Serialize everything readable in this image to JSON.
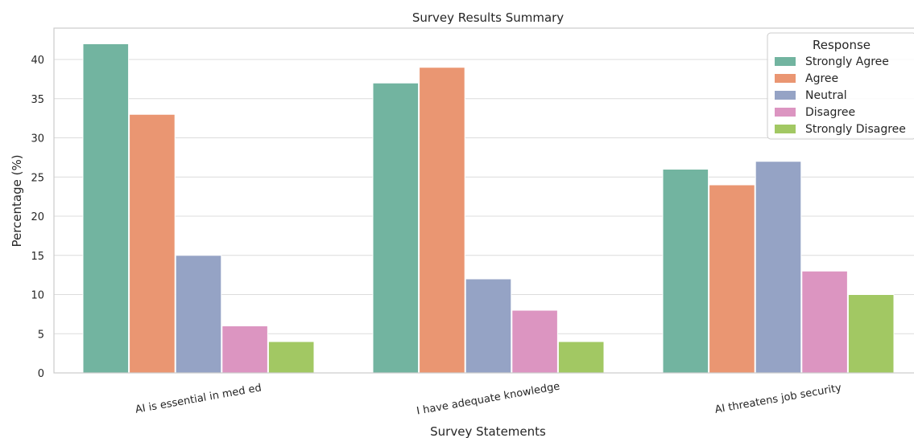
{
  "chart_data": {
    "type": "bar",
    "title": "Survey Results Summary",
    "xlabel": "Survey Statements",
    "ylabel": "Percentage (%)",
    "categories": [
      "AI is essential in med ed",
      "I have adequate knowledge",
      "AI threatens job security"
    ],
    "series": [
      {
        "name": "Strongly Agree",
        "color": "#72b4a0",
        "values": [
          42,
          37,
          26
        ]
      },
      {
        "name": "Agree",
        "color": "#ea9672",
        "values": [
          33,
          39,
          24
        ]
      },
      {
        "name": "Neutral",
        "color": "#95a3c5",
        "values": [
          15,
          12,
          27
        ]
      },
      {
        "name": "Disagree",
        "color": "#dc95c1",
        "values": [
          6,
          8,
          13
        ]
      },
      {
        "name": "Strongly Disagree",
        "color": "#a2c863",
        "values": [
          4,
          4,
          10
        ]
      }
    ],
    "yticks": [
      "0",
      "5",
      "10",
      "15",
      "20",
      "25",
      "30",
      "35",
      "40"
    ],
    "ylim": [
      0,
      44
    ],
    "grid": true,
    "legend": {
      "title": "Response",
      "placement": "top-right"
    }
  }
}
